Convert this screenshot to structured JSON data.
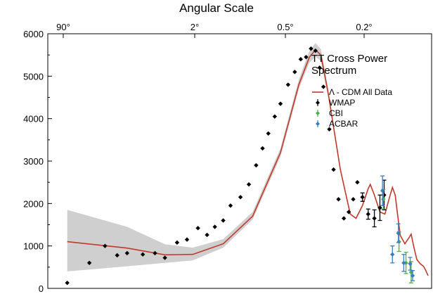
{
  "chart_data": {
    "type": "scatter",
    "top_axis_label": "Angular Scale",
    "top_ticks": [
      "90°",
      "2°",
      "0.5°",
      "0.2°"
    ],
    "ylim": [
      0,
      6000
    ],
    "y_ticks": [
      0,
      1000,
      2000,
      3000,
      4000,
      5000,
      6000
    ],
    "panel_title_lines": [
      "TT Cross Power",
      "Spectrum"
    ],
    "legend": [
      {
        "label": "Λ - CDM All Data",
        "kind": "line",
        "color": "#c0392b"
      },
      {
        "label": "WMAP",
        "kind": "errorbar",
        "color": "#000000"
      },
      {
        "label": "CBI",
        "kind": "errorbar",
        "color": "#4daf4a"
      },
      {
        "label": "ACBAR",
        "kind": "errorbar",
        "color": "#3a7dc1"
      }
    ],
    "colors": {
      "model": "#c0392b",
      "band": "#cfcfcf",
      "wmap": "#000000",
      "cbi": "#4daf4a",
      "acbar": "#3a7dc1"
    },
    "model_curve": [
      [
        2,
        1100
      ],
      [
        6,
        950
      ],
      [
        12,
        790
      ],
      [
        20,
        800
      ],
      [
        35,
        1050
      ],
      [
        60,
        1700
      ],
      [
        100,
        3200
      ],
      [
        140,
        4800
      ],
      [
        170,
        5450
      ],
      [
        190,
        5620
      ],
      [
        210,
        5500
      ],
      [
        240,
        4600
      ],
      [
        300,
        2800
      ],
      [
        360,
        1750
      ],
      [
        400,
        1650
      ],
      [
        450,
        1950
      ],
      [
        500,
        2350
      ],
      [
        520,
        2450
      ],
      [
        560,
        2200
      ],
      [
        620,
        1800
      ],
      [
        680,
        1750
      ],
      [
        740,
        2150
      ],
      [
        780,
        2380
      ],
      [
        820,
        2200
      ],
      [
        860,
        1700
      ],
      [
        900,
        1250
      ],
      [
        980,
        1050
      ],
      [
        1060,
        1200
      ],
      [
        1100,
        1280
      ],
      [
        1150,
        1000
      ],
      [
        1220,
        680
      ],
      [
        1300,
        580
      ],
      [
        1380,
        520
      ],
      [
        1440,
        420
      ],
      [
        1500,
        300
      ]
    ],
    "band_upper": [
      [
        2,
        1850
      ],
      [
        6,
        1450
      ],
      [
        12,
        1040
      ],
      [
        20,
        960
      ],
      [
        35,
        1160
      ],
      [
        60,
        1800
      ],
      [
        100,
        3300
      ],
      [
        140,
        4920
      ],
      [
        170,
        5600
      ],
      [
        190,
        5780
      ],
      [
        210,
        5640
      ],
      [
        240,
        4700
      ]
    ],
    "band_lower": [
      [
        2,
        400
      ],
      [
        6,
        520
      ],
      [
        12,
        600
      ],
      [
        20,
        660
      ],
      [
        35,
        960
      ],
      [
        60,
        1620
      ],
      [
        100,
        3100
      ],
      [
        140,
        4700
      ],
      [
        170,
        5320
      ],
      [
        190,
        5460
      ],
      [
        210,
        5360
      ],
      [
        240,
        4500
      ]
    ],
    "series": [
      {
        "name": "WMAP",
        "points": [
          [
            2,
            130
          ],
          [
            3,
            600
          ],
          [
            4,
            1000
          ],
          [
            5,
            780
          ],
          [
            6,
            830
          ],
          [
            8,
            800
          ],
          [
            10,
            830
          ],
          [
            12,
            720
          ],
          [
            15,
            1080
          ],
          [
            18,
            1150
          ],
          [
            22,
            1420
          ],
          [
            26,
            1260
          ],
          [
            30,
            1450
          ],
          [
            35,
            1600
          ],
          [
            40,
            1950
          ],
          [
            48,
            2150
          ],
          [
            56,
            2450
          ],
          [
            64,
            2900
          ],
          [
            72,
            3300
          ],
          [
            80,
            3650
          ],
          [
            90,
            4050
          ],
          [
            100,
            4350
          ],
          [
            115,
            4800
          ],
          [
            130,
            5100
          ],
          [
            145,
            5400
          ],
          [
            160,
            5450
          ],
          [
            175,
            5650
          ],
          [
            190,
            5600
          ],
          [
            205,
            5200
          ],
          [
            220,
            4750
          ],
          [
            245,
            3750
          ],
          [
            265,
            2800
          ],
          [
            290,
            2100
          ],
          [
            320,
            1650
          ],
          [
            350,
            1800
          ],
          [
            380,
            2100
          ],
          [
            410,
            2500
          ],
          [
            450,
            2150
          ],
          [
            500,
            1750
          ],
          [
            560,
            1650
          ],
          [
            620,
            1900
          ],
          [
            670,
            2200
          ]
        ],
        "errors": [
          0,
          0,
          0,
          0,
          0,
          0,
          0,
          0,
          0,
          0,
          0,
          0,
          0,
          0,
          0,
          0,
          0,
          0,
          0,
          0,
          0,
          0,
          0,
          0,
          0,
          0,
          0,
          0,
          0,
          0,
          0,
          0,
          0,
          0,
          0,
          0,
          0,
          100,
          120,
          200,
          300,
          350
        ]
      },
      {
        "name": "CBI",
        "points": [
          [
            660,
            2100
          ],
          [
            880,
            1100
          ],
          [
            1000,
            600
          ],
          [
            1100,
            380
          ]
        ],
        "errors": [
          230,
          230,
          250,
          250
        ]
      },
      {
        "name": "ACBAR",
        "points": [
          [
            650,
            2300
          ],
          [
            780,
            800
          ],
          [
            870,
            1300
          ],
          [
            960,
            600
          ],
          [
            1080,
            580
          ],
          [
            1130,
            300
          ]
        ],
        "errors": [
          350,
          200,
          220,
          200,
          150,
          120
        ]
      }
    ]
  }
}
